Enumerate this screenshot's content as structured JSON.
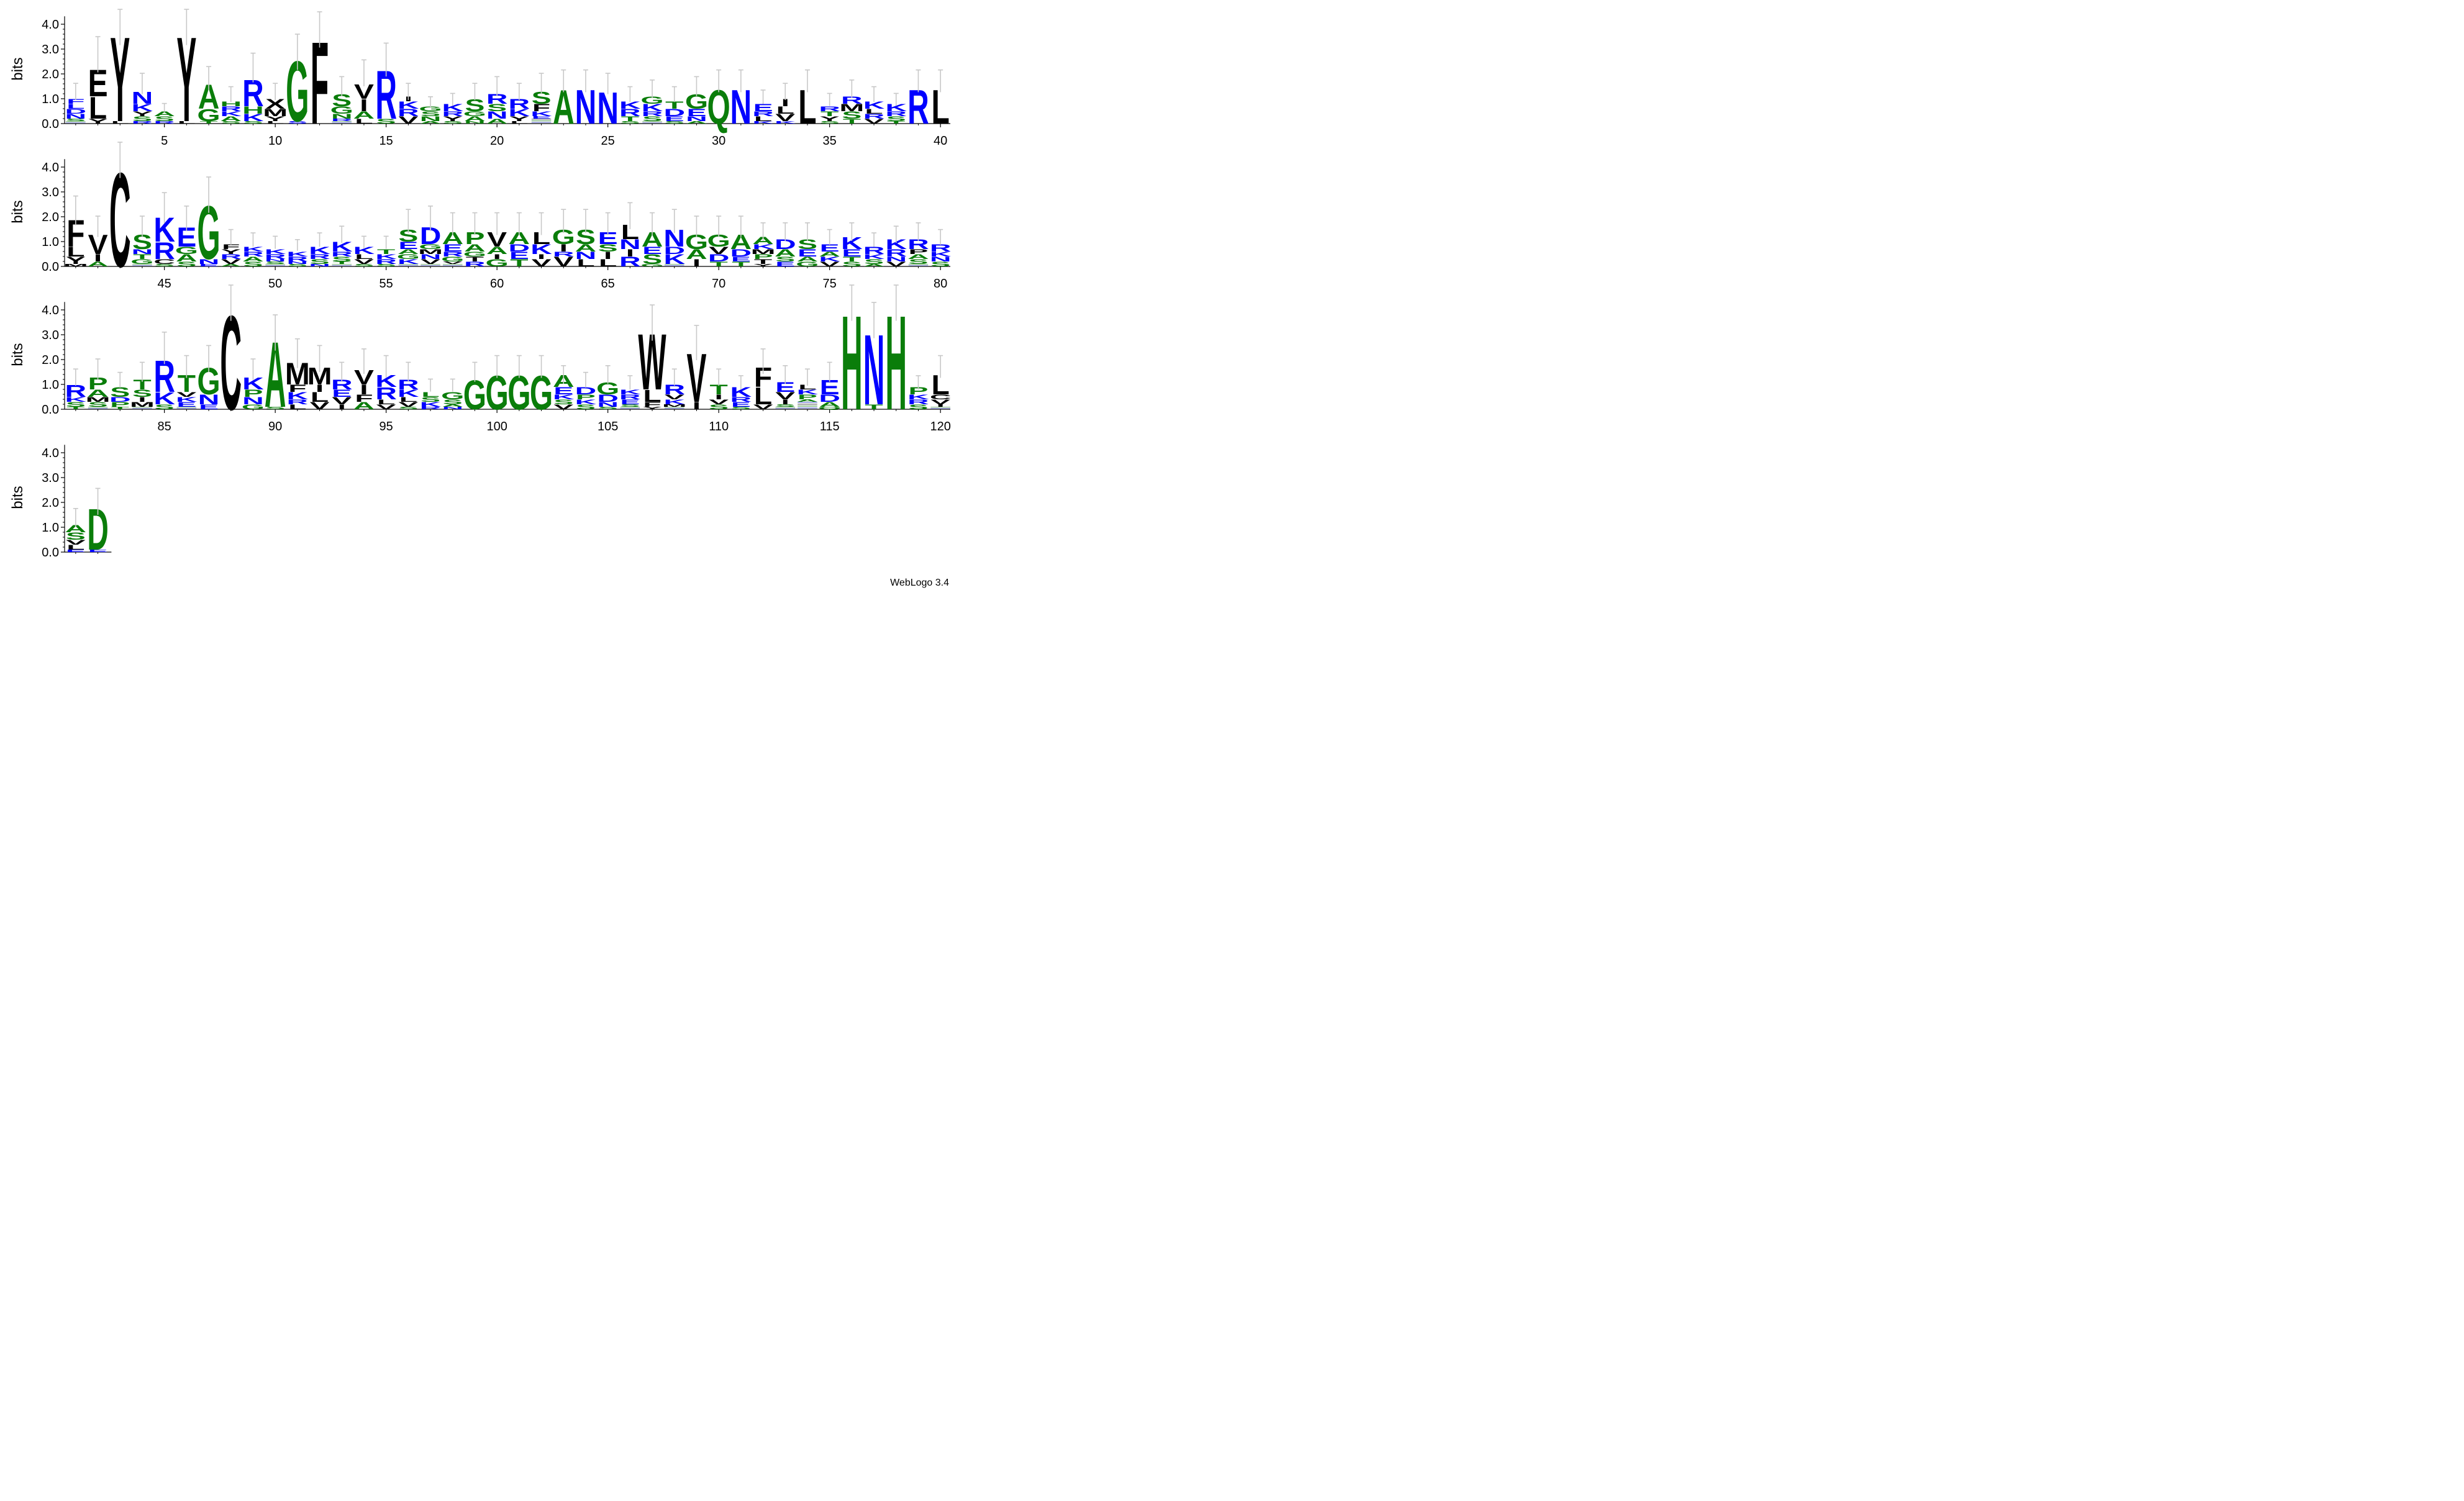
{
  "chart_data": {
    "type": "sequence-logo",
    "title": "",
    "xlabel": "",
    "ylabel": "bits",
    "ylim": [
      0,
      4.32
    ],
    "yticks": [
      "0.0",
      "1.0",
      "2.0",
      "3.0",
      "4.0"
    ],
    "x_tick_labels": [
      [
        "5",
        "10",
        "15",
        "20",
        "25",
        "30",
        "35",
        "40"
      ],
      [
        "45",
        "50",
        "55",
        "60",
        "65",
        "70",
        "75",
        "80"
      ],
      [
        "85",
        "90",
        "95",
        "100",
        "105",
        "110",
        "115",
        "120"
      ],
      []
    ],
    "residue_colors": {
      "black": "#000000",
      "green": "#0a7d0a",
      "blue": "#0000ff",
      "error_bar": "#c8c8c8"
    },
    "positions": [
      {
        "pos": 1,
        "h": 1.2,
        "s": [
          "F:B:.2",
          "L:B:.2",
          "D:B:.2",
          "N:B:.2",
          "S:G:.1"
        ]
      },
      {
        "pos": 2,
        "h": 2.6,
        "s": [
          "E:K:1.1",
          "L:K:.9",
          "Y:K:.2"
        ]
      },
      {
        "pos": 3,
        "h": 3.7,
        "s": [
          "Y:K:3.5",
          "L:K:.1"
        ]
      },
      {
        "pos": 4,
        "h": 1.5,
        "s": [
          "N:B:.5",
          "K:B:.3",
          "Y:K:.2",
          "S:G:.2",
          "R:B:.1"
        ]
      },
      {
        "pos": 5,
        "h": 0.6,
        "s": [
          "A:G:.2",
          "S:G:.2",
          "R:B:.1"
        ]
      },
      {
        "pos": 6,
        "h": 3.7,
        "s": [
          "Y:K:3.5",
          "L:K:.1"
        ]
      },
      {
        "pos": 7,
        "h": 1.7,
        "s": [
          "A:G:1",
          "G:G:.5",
          "T:G:.1"
        ]
      },
      {
        "pos": 8,
        "h": 1.1,
        "s": [
          "H:G:.2",
          "R:B:.2",
          "K:B:.2",
          "A:G:.2",
          "S:G:.1"
        ]
      },
      {
        "pos": 9,
        "h": 2.1,
        "s": [
          "R:B:1.1",
          "H:G:.3",
          "K:B:.3",
          "S:G:.1"
        ]
      },
      {
        "pos": 10,
        "h": 1.2,
        "s": [
          "X:K:.4",
          "M:K:.3",
          "Y:K:.2",
          "L:K:.1"
        ]
      },
      {
        "pos": 11,
        "h": 2.7,
        "s": [
          "G:G:2.5",
          "S:B:.1"
        ]
      },
      {
        "pos": 12,
        "h": 3.6,
        "s": [
          "F:K:3.4"
        ]
      },
      {
        "pos": 13,
        "h": 1.4,
        "s": [
          "S:G:.5",
          "G:G:.3",
          "N:G:.2",
          "R:B:.1"
        ]
      },
      {
        "pos": 14,
        "h": 1.9,
        "s": [
          "V:K:.6",
          "I:K:.5",
          "A:G:.3",
          "L:K:.2"
        ]
      },
      {
        "pos": 15,
        "h": 2.4,
        "s": [
          "R:B:2",
          "S:G:.2"
        ]
      },
      {
        "pos": 16,
        "h": 1.2,
        "s": [
          "I:K:.2",
          "K:B:.3",
          "R:B:.3",
          "V:K:.3"
        ]
      },
      {
        "pos": 17,
        "h": 0.8,
        "s": [
          "G:G:.2",
          "S:G:.2",
          "N:G:.2",
          "A:G:.1"
        ]
      },
      {
        "pos": 18,
        "h": 0.9,
        "s": [
          "K:B:.3",
          "R:B:.2",
          "Y:K:.2",
          "S:G:.1"
        ]
      },
      {
        "pos": 19,
        "h": 1.2,
        "s": [
          "S:G:.5",
          "G:G:.2",
          "A:G:.2",
          "N:G:.1"
        ]
      },
      {
        "pos": 20,
        "h": 1.4,
        "s": [
          "R:B:.4",
          "S:G:.3",
          "N:B:.3",
          "A:G:.2"
        ]
      },
      {
        "pos": 21,
        "h": 1.2,
        "s": [
          "R:B:.4",
          "K:B:.3",
          "Y:K:.2",
          "L:K:.1"
        ]
      },
      {
        "pos": 22,
        "h": 1.5,
        "s": [
          "S:G:.5",
          "F:K:.3",
          "K:B:.2",
          "E:B:.1"
        ]
      },
      {
        "pos": 23,
        "h": 1.6,
        "s": [
          "A:G:1.4"
        ]
      },
      {
        "pos": 24,
        "h": 1.6,
        "s": [
          "N:B:1.4"
        ]
      },
      {
        "pos": 25,
        "h": 1.5,
        "s": [
          "N:B:1.3"
        ]
      },
      {
        "pos": 26,
        "h": 1.1,
        "s": [
          "K:B:.3",
          "R:B:.3",
          "T:G:.2",
          "S:G:.1"
        ]
      },
      {
        "pos": 27,
        "h": 1.3,
        "s": [
          "G:G:.3",
          "K:B:.3",
          "R:B:.2",
          "S:G:.2"
        ]
      },
      {
        "pos": 28,
        "h": 1.1,
        "s": [
          "T:G:.3",
          "D:B:.3",
          "E:B:.2",
          "S:G:.1"
        ]
      },
      {
        "pos": 29,
        "h": 1.4,
        "s": [
          "G:G:.6",
          "E:B:.3",
          "N:B:.2",
          "A:G:.1"
        ]
      },
      {
        "pos": 30,
        "h": 1.6,
        "s": [
          "Q:G:1.4"
        ]
      },
      {
        "pos": 31,
        "h": 1.6,
        "s": [
          "N:B:1.4"
        ]
      },
      {
        "pos": 32,
        "h": 1.0,
        "s": [
          "E:B:.3",
          "R:B:.2",
          "L:K:.2",
          "K:B:.1"
        ]
      },
      {
        "pos": 33,
        "h": 1.2,
        "s": [
          "I:K:.3",
          "L:K:.3",
          "V:K:.3",
          "K:B:.1"
        ]
      },
      {
        "pos": 34,
        "h": 1.6,
        "s": [
          "L:K:1.4"
        ]
      },
      {
        "pos": 35,
        "h": 0.9,
        "s": [
          "R:B:.2",
          "T:G:.2",
          "Y:K:.2",
          "S:G:.1"
        ]
      },
      {
        "pos": 36,
        "h": 1.3,
        "s": [
          "R:B:.3",
          "M:K:.3",
          "S:G:.3",
          "T:G:.2"
        ]
      },
      {
        "pos": 37,
        "h": 1.1,
        "s": [
          "K:B:.3",
          "L:K:.2",
          "R:B:.2",
          "V:K:.2"
        ]
      },
      {
        "pos": 38,
        "h": 0.9,
        "s": [
          "K:B:.3",
          "R:B:.2",
          "S:G:.2",
          "T:G:.1"
        ]
      },
      {
        "pos": 39,
        "h": 1.6,
        "s": [
          "R:B:1.4"
        ]
      },
      {
        "pos": 40,
        "h": 1.6,
        "s": [
          "L:K:1.4"
        ]
      },
      {
        "pos": 41,
        "h": 2.1,
        "s": [
          "F:K:1.1",
          "L:K:.4",
          "Y:K:.3",
          "M:K:.1"
        ]
      },
      {
        "pos": 42,
        "h": 1.5,
        "s": [
          "V:K:.8",
          "I:K:.3",
          "A:G:.2"
        ]
      },
      {
        "pos": 43,
        "h": 4.1,
        "s": [
          "C:K:3.9"
        ]
      },
      {
        "pos": 44,
        "h": 1.5,
        "s": [
          "S:G:.6",
          "N:B:.2",
          "T:G:.2",
          "G:G:.2"
        ]
      },
      {
        "pos": 45,
        "h": 2.2,
        "s": [
          "K:B:1",
          "R:B:.7",
          "C:K:.2",
          "S:G:.1"
        ]
      },
      {
        "pos": 46,
        "h": 1.8,
        "s": [
          "E:B:.8",
          "G:G:.3",
          "A:G:.3",
          "S:G:.2"
        ]
      },
      {
        "pos": 47,
        "h": 2.7,
        "s": [
          "G:G:2.2",
          "N:B:.2",
          "E:B:.1"
        ]
      },
      {
        "pos": 48,
        "h": 1.1,
        "s": [
          "F:K:.2",
          "Y:K:.2",
          "R:B:.2",
          "V:K:.2",
          "A:G:.1"
        ]
      },
      {
        "pos": 49,
        "h": 1.0,
        "s": [
          "K:B:.2",
          "R:B:.2",
          "A:G:.2",
          "S:G:.2"
        ]
      },
      {
        "pos": 50,
        "h": 0.9,
        "s": [
          "K:B:.2",
          "R:B:.2",
          "N:B:.1",
          "S:G:.1"
        ]
      },
      {
        "pos": 51,
        "h": 0.8,
        "s": [
          "K:B:.2",
          "R:B:.2",
          "N:B:.1",
          "S:G:.1"
        ]
      },
      {
        "pos": 52,
        "h": 1.0,
        "s": [
          "K:B:.3",
          "R:B:.2",
          "S:G:.2",
          "N:B:.1"
        ]
      },
      {
        "pos": 53,
        "h": 1.2,
        "s": [
          "K:B:.4",
          "R:B:.2",
          "S:G:.2",
          "T:G:.1"
        ]
      },
      {
        "pos": 54,
        "h": 0.9,
        "s": [
          "K:B:.3",
          "L:K:.2",
          "V:K:.2",
          "S:G:.1"
        ]
      },
      {
        "pos": 55,
        "h": 0.9,
        "s": [
          "T:G:.2",
          "K:B:.2",
          "R:B:.2",
          "S:G:.1"
        ]
      },
      {
        "pos": 56,
        "h": 1.7,
        "s": [
          "S:G:.5",
          "E:B:.3",
          "A:G:.2",
          "G:G:.2",
          "K:B:.2"
        ]
      },
      {
        "pos": 57,
        "h": 1.8,
        "s": [
          "D:B:.7",
          "G:G:.2",
          "M:K:.2",
          "N:B:.2",
          "V:K:.2"
        ]
      },
      {
        "pos": 58,
        "h": 1.6,
        "s": [
          "A:G:.5",
          "E:B:.3",
          "R:B:.2",
          "G:G:.2",
          "V:K:.1"
        ]
      },
      {
        "pos": 59,
        "h": 1.6,
        "s": [
          "P:G:.5",
          "A:G:.3",
          "G:G:.2",
          "T:K:.2",
          "R:B:.2"
        ]
      },
      {
        "pos": 60,
        "h": 1.6,
        "s": [
          "V:K:.6",
          "A:G:.3",
          "I:K:.2",
          "G:G:.3"
        ]
      },
      {
        "pos": 61,
        "h": 1.6,
        "s": [
          "A:G:.5",
          "D:B:.3",
          "E:B:.3",
          "T:G:.3"
        ]
      },
      {
        "pos": 62,
        "h": 1.6,
        "s": [
          "L:K:.5",
          "K:B:.4",
          "I:K:.2",
          "V:K:.3"
        ]
      },
      {
        "pos": 63,
        "h": 1.7,
        "s": [
          "G:G:.6",
          "I:K:.3",
          "R:B:.2",
          "V:K:.4"
        ]
      },
      {
        "pos": 64,
        "h": 1.7,
        "s": [
          "S:G:.6",
          "A:G:.3",
          "N:B:.3",
          "L:K:.3"
        ]
      },
      {
        "pos": 65,
        "h": 1.6,
        "s": [
          "E:B:.5",
          "S:G:.3",
          "I:K:.3",
          "L:K:.3"
        ]
      },
      {
        "pos": 66,
        "h": 1.9,
        "s": [
          "L:K:.6",
          "N:B:.4",
          "I:K:.3",
          "R:B:.4"
        ]
      },
      {
        "pos": 67,
        "h": 1.6,
        "s": [
          "A:G:.6",
          "E:B:.3",
          "S:G:.4",
          "G:G:.1"
        ]
      },
      {
        "pos": 68,
        "h": 1.7,
        "s": [
          "N:B:.7",
          "D:B:.3",
          "K:B:.4"
        ]
      },
      {
        "pos": 69,
        "h": 1.5,
        "s": [
          "G:G:.6",
          "A:G:.4",
          "I:K:.3"
        ]
      },
      {
        "pos": 70,
        "h": 1.5,
        "s": [
          "G:G:.5",
          "V:K:.3",
          "D:B:.3",
          "T:G:.2"
        ]
      },
      {
        "pos": 71,
        "h": 1.5,
        "s": [
          "A:G:.6",
          "D:B:.3",
          "E:B:.2",
          "T:G:.2"
        ]
      },
      {
        "pos": 72,
        "h": 1.3,
        "s": [
          "A:G:.3",
          "K:B:.2",
          "M:K:.2",
          "P:G:.2",
          "T:K:.2",
          "Y:K:.1"
        ]
      },
      {
        "pos": 73,
        "h": 1.3,
        "s": [
          "D:B:.4",
          "A:G:.3",
          "S:G:.2",
          "E:B:.2"
        ]
      },
      {
        "pos": 74,
        "h": 1.3,
        "s": [
          "S:G:.4",
          "E:B:.3",
          "A:G:.2",
          "G:G:.2"
        ]
      },
      {
        "pos": 75,
        "h": 1.1,
        "s": [
          "E:B:.3",
          "A:G:.2",
          "K:B:.2",
          "V:K:.2"
        ]
      },
      {
        "pos": 76,
        "h": 1.3,
        "s": [
          "K:B:.5",
          "E:B:.3",
          "T:G:.2",
          "S:G:.2"
        ]
      },
      {
        "pos": 77,
        "h": 1.0,
        "s": [
          "R:B:.3",
          "K:B:.2",
          "S:G:.2",
          "A:G:.1"
        ]
      },
      {
        "pos": 78,
        "h": 1.2,
        "s": [
          "K:B:.4",
          "R:B:.3",
          "N:B:.2",
          "V:K:.2"
        ]
      },
      {
        "pos": 79,
        "h": 1.3,
        "s": [
          "R:B:.4",
          "P:K:.2",
          "A:G:.2",
          "S:G:.2"
        ]
      },
      {
        "pos": 80,
        "h": 1.1,
        "s": [
          "R:B:.3",
          "K:B:.2",
          "N:B:.2",
          "S:G:.2"
        ]
      },
      {
        "pos": 81,
        "h": 1.2,
        "s": [
          "R:B:.5",
          "K:B:.2",
          "S:G:.2",
          "T:G:.1"
        ]
      },
      {
        "pos": 82,
        "h": 1.5,
        "s": [
          "P:G:.5",
          "A:G:.3",
          "M:K:.2",
          "S:G:.2"
        ]
      },
      {
        "pos": 83,
        "h": 1.1,
        "s": [
          "S:G:.4",
          "D:B:.2",
          "P:G:.2",
          "T:G:.1"
        ]
      },
      {
        "pos": 84,
        "h": 1.4,
        "s": [
          "T:G:.4",
          "S:G:.3",
          "I:K:.2",
          "M:K:.2"
        ]
      },
      {
        "pos": 85,
        "h": 2.3,
        "s": [
          "R:B:1.3",
          "K:B:.5",
          "S:G:.2"
        ]
      },
      {
        "pos": 86,
        "h": 1.6,
        "s": [
          "T:G:.7",
          "V:K:.2",
          "K:B:.2",
          "E:B:.2"
        ]
      },
      {
        "pos": 87,
        "h": 1.9,
        "s": [
          "G:G:1.1",
          "N:B:.4",
          "E:B:.2"
        ]
      },
      {
        "pos": 88,
        "h": 4.1,
        "s": [
          "C:K:3.9"
        ]
      },
      {
        "pos": 89,
        "h": 1.5,
        "s": [
          "K:B:.5",
          "P:G:.3",
          "N:B:.3",
          "G:G:.2"
        ]
      },
      {
        "pos": 90,
        "h": 2.9,
        "s": [
          "A:G:2.7",
          "S:G:.1"
        ]
      },
      {
        "pos": 91,
        "h": 2.1,
        "s": [
          "M:K:.9",
          "F:K:.3",
          "K:B:.3",
          "R:B:.2",
          "L:K:.2"
        ]
      },
      {
        "pos": 92,
        "h": 1.9,
        "s": [
          "M:K:.7",
          "I:K:.3",
          "L:K:.4",
          "V:K:.3"
        ]
      },
      {
        "pos": 93,
        "h": 1.4,
        "s": [
          "R:B:.4",
          "E:B:.3",
          "V:K:.3",
          "I:K:.2"
        ]
      },
      {
        "pos": 94,
        "h": 1.8,
        "s": [
          "V:K:.6",
          "I:K:.4",
          "F:K:.3",
          "A:G:.3"
        ]
      },
      {
        "pos": 95,
        "h": 1.6,
        "s": [
          "K:B:.5",
          "R:B:.5",
          "L:K:.2",
          "V:K:.2"
        ]
      },
      {
        "pos": 96,
        "h": 1.4,
        "s": [
          "R:B:.4",
          "K:B:.3",
          "L:K:.2",
          "V:K:.2",
          "S:G:.1"
        ]
      },
      {
        "pos": 97,
        "h": 0.9,
        "s": [
          "L:G:.2",
          "S:G:.2",
          "K:B:.2",
          "R:B:.1"
        ]
      },
      {
        "pos": 98,
        "h": 0.9,
        "s": [
          "G:G:.3",
          "S:G:.2",
          "A:G:.1",
          "N:B:.1"
        ]
      },
      {
        "pos": 99,
        "h": 1.4,
        "s": [
          "G:G:1.2"
        ]
      },
      {
        "pos": 100,
        "h": 1.6,
        "s": [
          "G:G:1.4"
        ]
      },
      {
        "pos": 101,
        "h": 1.6,
        "s": [
          "G:G:1.4"
        ]
      },
      {
        "pos": 102,
        "h": 1.6,
        "s": [
          "G:G:1.4"
        ]
      },
      {
        "pos": 103,
        "h": 1.3,
        "s": [
          "A:G:.5",
          "E:B:.3",
          "K:B:.2",
          "S:G:.2",
          "V:K:.2"
        ]
      },
      {
        "pos": 104,
        "h": 1.1,
        "s": [
          "D:B:.3",
          "P:G:.2",
          "K:B:.2",
          "S:G:.2"
        ]
      },
      {
        "pos": 105,
        "h": 1.3,
        "s": [
          "G:G:.5",
          "D:B:.3",
          "N:B:.2",
          "S:G:.1"
        ]
      },
      {
        "pos": 106,
        "h": 1.0,
        "s": [
          "K:B:.2",
          "R:B:.2",
          "E:B:.2",
          "S:G:.1"
        ]
      },
      {
        "pos": 107,
        "h": 3.3,
        "s": [
          "W:K:2.3",
          "L:K:.5",
          "F:K:.2",
          "Y:K:.1"
        ]
      },
      {
        "pos": 108,
        "h": 1.2,
        "s": [
          "R:B:.4",
          "V:K:.2",
          "K:B:.2",
          "M:K:.1"
        ]
      },
      {
        "pos": 109,
        "h": 2.5,
        "s": [
          "V:K:2",
          "I:K:.3"
        ]
      },
      {
        "pos": 110,
        "h": 1.2,
        "s": [
          "T:G:.4",
          "I:K:.2",
          "V:K:.2",
          "S:G:.2"
        ]
      },
      {
        "pos": 111,
        "h": 1.0,
        "s": [
          "K:B:.4",
          "R:B:.2",
          "E:B:.2",
          "S:G:.1"
        ]
      },
      {
        "pos": 112,
        "h": 1.8,
        "s": [
          "F:K:.8",
          "L:K:.7",
          "V:K:.2"
        ]
      },
      {
        "pos": 113,
        "h": 1.3,
        "s": [
          "E:B:.4",
          "V:K:.3",
          "I:K:.2",
          "S:G:.1"
        ]
      },
      {
        "pos": 114,
        "h": 1.2,
        "s": [
          "L:K:.2",
          "K:B:.2",
          "P:G:.2",
          "A:G:.1"
        ]
      },
      {
        "pos": 115,
        "h": 1.4,
        "s": [
          "E:B:.6",
          "D:B:.3",
          "A:G:.2",
          "Q:G:.1"
        ]
      },
      {
        "pos": 116,
        "h": 4.1,
        "s": [
          "H:G:3.9"
        ]
      },
      {
        "pos": 117,
        "h": 3.4,
        "s": [
          "N:B:2.9",
          "T:G:.2"
        ]
      },
      {
        "pos": 118,
        "h": 4.1,
        "s": [
          "H:G:3.9"
        ]
      },
      {
        "pos": 119,
        "h": 1.0,
        "s": [
          "P:G:.3",
          "K:B:.2",
          "R:B:.2",
          "S:G:.2"
        ]
      },
      {
        "pos": 120,
        "h": 1.6,
        "s": [
          "L:K:.8",
          "C:K:.2",
          "V:K:.2",
          "I:K:.1"
        ]
      },
      {
        "pos": 121,
        "h": 1.3,
        "s": [
          "A:G:.3",
          "S:G:.3",
          "V:K:.2",
          "L:K:.2",
          "E:B:.1"
        ]
      },
      {
        "pos": 122,
        "h": 1.9,
        "s": [
          "D:G:1.7",
          "E:B:.1"
        ]
      }
    ],
    "credit": "WebLogo 3.4"
  }
}
